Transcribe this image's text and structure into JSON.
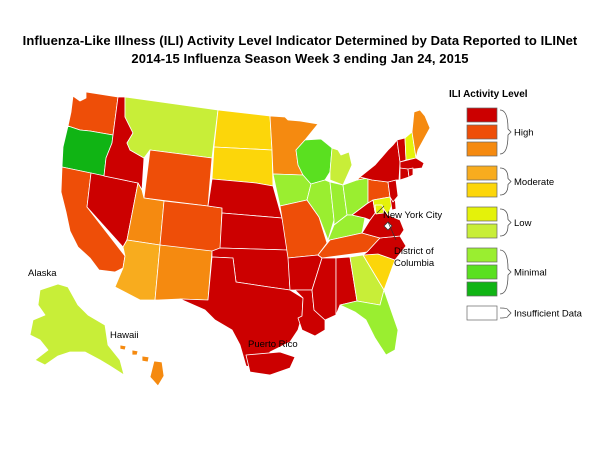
{
  "title": "Influenza-Like Illness (ILI) Activity Level Indicator Determined by Data Reported to ILINet",
  "subtitle": "2014-15  Influenza Season Week  3 ending Jan 24, 2015",
  "colors": {
    "high10": "#cc0000",
    "high9": "#ee4e08",
    "high8": "#f58a10",
    "mod7": "#f8ac1e",
    "mod6": "#fcd60a",
    "low5": "#e4f20a",
    "low4": "#c8ee38",
    "min3": "#9aee30",
    "min2": "#5ae020",
    "min1": "#10b414",
    "insufficient": "#ffffff"
  },
  "legend": {
    "title": "ILI Activity Level",
    "groups": [
      {
        "label": "High",
        "levels": [
          10,
          9,
          8
        ]
      },
      {
        "label": "Moderate",
        "levels": [
          7,
          6
        ]
      },
      {
        "label": "Low",
        "levels": [
          5,
          4
        ]
      },
      {
        "label": "Minimal",
        "levels": [
          3,
          2,
          1
        ]
      },
      {
        "label": "Insufficient Data",
        "levels": [
          0
        ]
      }
    ]
  },
  "labels": {
    "alaska": "Alaska",
    "hawaii": "Hawaii",
    "puerto_rico": "Puerto Rico",
    "nyc": "New York City",
    "dc_line1": "District of",
    "dc_line2": "Columbia"
  },
  "states": {
    "WA": 9,
    "OR": 1,
    "CA": 9,
    "NV": 10,
    "ID": 10,
    "MT": 4,
    "WY": 9,
    "UT": 8,
    "AZ": 7,
    "CO": 9,
    "NM": 8,
    "ND": 6,
    "SD": 6,
    "NE": 10,
    "KS": 10,
    "OK": 10,
    "TX": 10,
    "MN": 8,
    "IA": 3,
    "MO": 9,
    "AR": 10,
    "LA": 10,
    "WI": 2,
    "IL": 3,
    "MI": 4,
    "IN": 3,
    "OH": 3,
    "KY": 3,
    "TN": 9,
    "MS": 10,
    "AL": 10,
    "GA": 4,
    "FL": 3,
    "SC": 6,
    "NC": 10,
    "VA": 10,
    "WV": 10,
    "PA": 9,
    "NY": 10,
    "VT": 10,
    "NH": 5,
    "ME": 8,
    "MA": 10,
    "RI": 10,
    "CT": 10,
    "NJ": 10,
    "DE": 10,
    "MD": 5,
    "AK": 4,
    "HI": 8,
    "PR": 10,
    "DC": 0,
    "NYC": 5
  }
}
